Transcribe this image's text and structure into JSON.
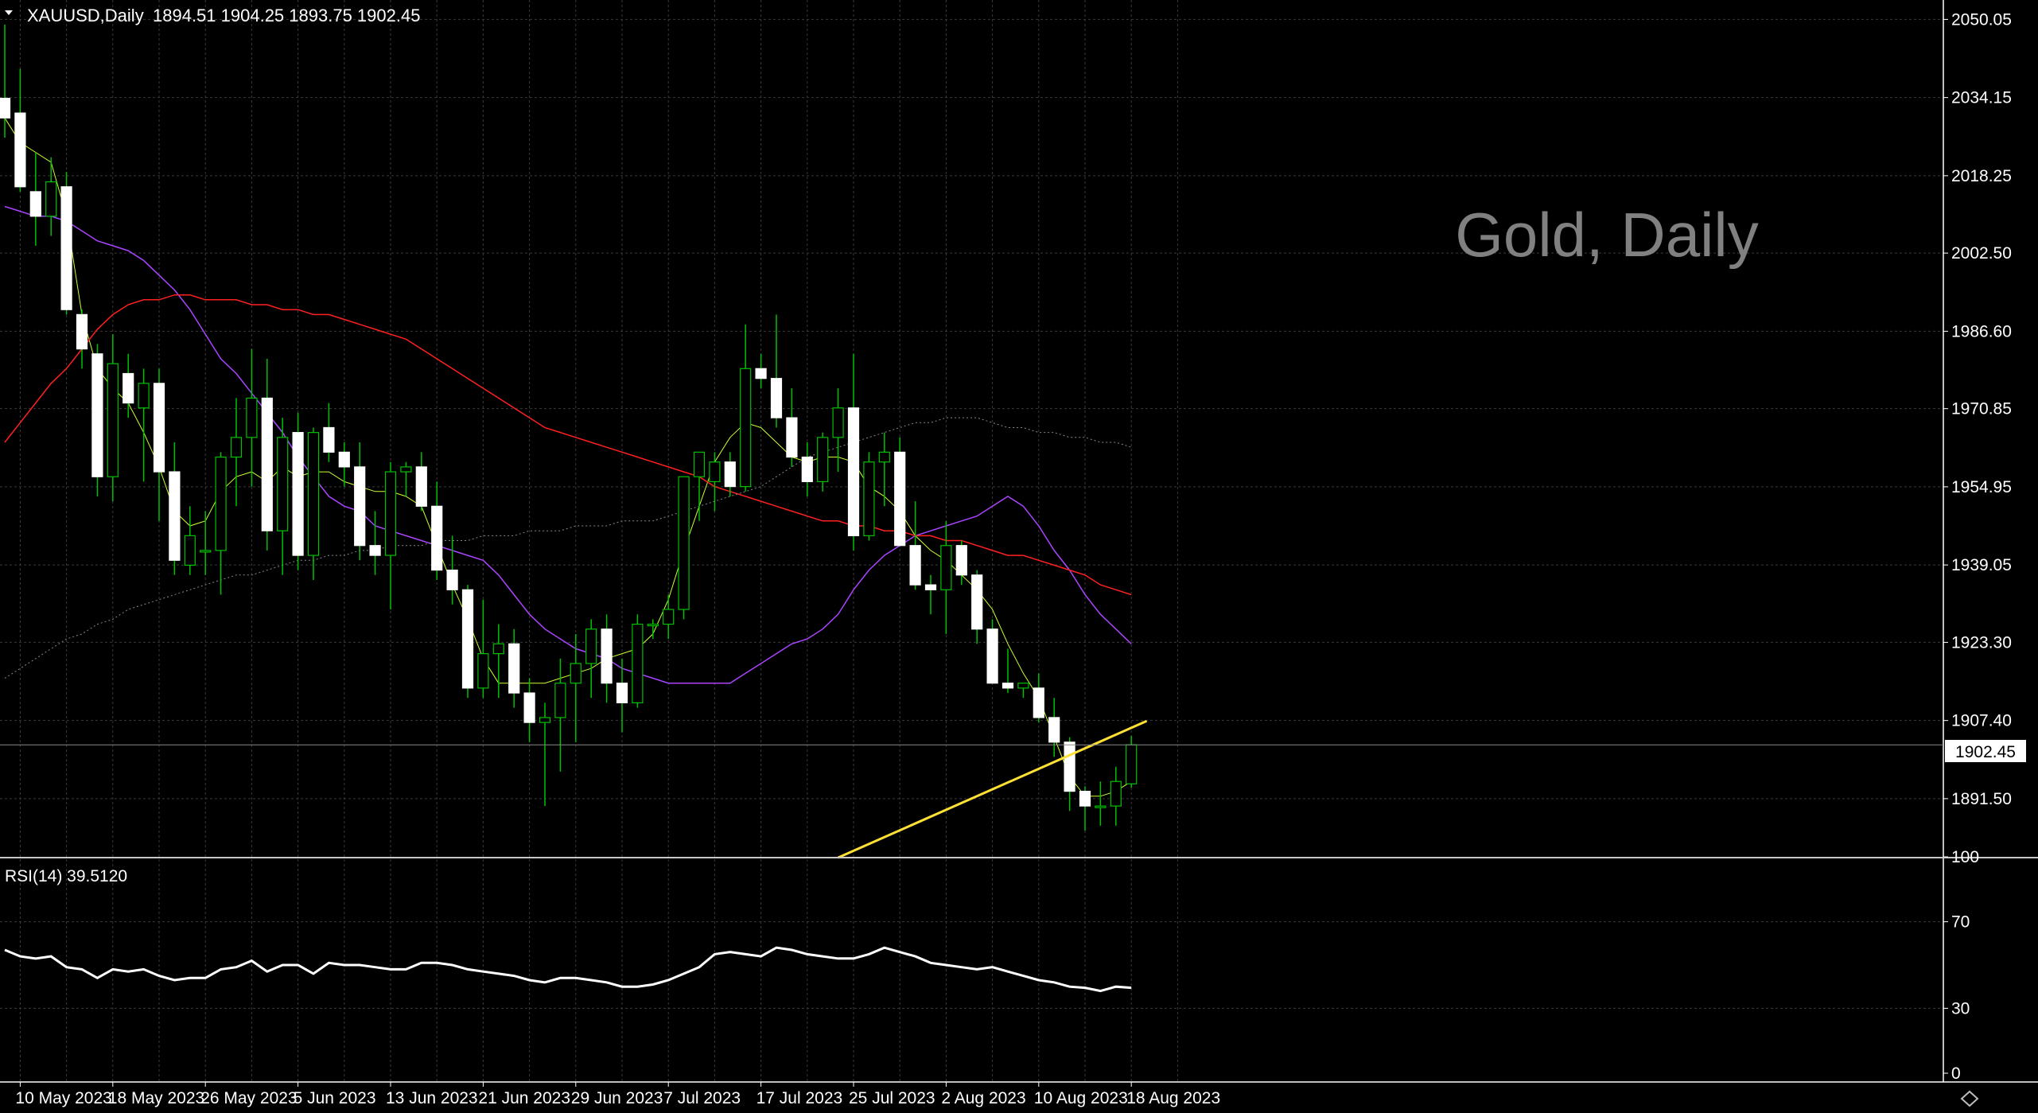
{
  "header": {
    "symbol": "XAUUSD,Daily",
    "ohlc": "1894.51 1904.25 1893.75 1902.45"
  },
  "watermark": "Gold, Daily",
  "current_price_label": "1902.45",
  "rsi": {
    "label": "RSI(14) 39.5120",
    "levels": [
      "100",
      "70",
      "30",
      "0"
    ]
  },
  "chart_data": {
    "type": "candlestick",
    "symbol": "XAUUSD",
    "timeframe": "Daily",
    "price_ticks": [
      "2050.05",
      "2034.15",
      "2018.25",
      "2002.50",
      "1986.60",
      "1970.85",
      "1954.95",
      "1939.05",
      "1923.30",
      "1907.40",
      "1891.50"
    ],
    "price_range": [
      1879.5,
      2054.0
    ],
    "last_price": 1902.45,
    "date_labels": [
      "10 May 2023",
      "18 May 2023",
      "26 May 2023",
      "5 Jun 2023",
      "13 Jun 2023",
      "21 Jun 2023",
      "29 Jun 2023",
      "7 Jul 2023",
      "17 Jul 2023",
      "25 Jul 2023",
      "2 Aug 2023",
      "10 Aug 2023",
      "18 Aug 2023"
    ],
    "date_label_index": [
      1,
      7,
      13,
      19,
      25,
      31,
      37,
      43,
      49,
      55,
      61,
      67,
      73
    ],
    "candles": [
      [
        2034,
        2049,
        2026,
        2030
      ],
      [
        2031,
        2040,
        2015,
        2016
      ],
      [
        2015,
        2023,
        2004,
        2010
      ],
      [
        2010,
        2022,
        2006,
        2017
      ],
      [
        2016,
        2019,
        1990,
        1991
      ],
      [
        1990,
        1991,
        1979,
        1983
      ],
      [
        1982,
        1984,
        1953,
        1957
      ],
      [
        1957,
        1986,
        1952,
        1980
      ],
      [
        1978,
        1982,
        1969,
        1972
      ],
      [
        1971,
        1979,
        1956,
        1976
      ],
      [
        1976,
        1979,
        1948,
        1958
      ],
      [
        1958,
        1964,
        1937,
        1940
      ],
      [
        1939,
        1951,
        1937,
        1945
      ],
      [
        1942,
        1950,
        1937,
        1942
      ],
      [
        1942,
        1962,
        1933,
        1961
      ],
      [
        1961,
        1973,
        1951,
        1965
      ],
      [
        1965,
        1983,
        1955,
        1973
      ],
      [
        1973,
        1981,
        1942,
        1946
      ],
      [
        1946,
        1969,
        1937,
        1965
      ],
      [
        1966,
        1970,
        1938,
        1941
      ],
      [
        1941,
        1967,
        1936,
        1966
      ],
      [
        1967,
        1972,
        1960,
        1962
      ],
      [
        1962,
        1964,
        1955,
        1959
      ],
      [
        1959,
        1964,
        1940,
        1943
      ],
      [
        1943,
        1950,
        1937,
        1941
      ],
      [
        1941,
        1960,
        1930,
        1958
      ],
      [
        1958,
        1960,
        1953,
        1959
      ],
      [
        1959,
        1962,
        1950,
        1951
      ],
      [
        1951,
        1956,
        1936,
        1938
      ],
      [
        1938,
        1945,
        1931,
        1934
      ],
      [
        1934,
        1935,
        1912,
        1914
      ],
      [
        1914,
        1932,
        1912,
        1921
      ],
      [
        1921,
        1927,
        1912,
        1923
      ],
      [
        1923,
        1926,
        1910,
        1913
      ],
      [
        1913,
        1916,
        1903,
        1907
      ],
      [
        1907,
        1911,
        1890,
        1908
      ],
      [
        1908,
        1920,
        1897,
        1915
      ],
      [
        1915,
        1925,
        1903,
        1919
      ],
      [
        1919,
        1928,
        1912,
        1926
      ],
      [
        1926,
        1929,
        1911,
        1915
      ],
      [
        1915,
        1920,
        1905,
        1911
      ],
      [
        1911,
        1929,
        1910,
        1927
      ],
      [
        1927,
        1928,
        1924,
        1927
      ],
      [
        1927,
        1933,
        1924,
        1930
      ],
      [
        1930,
        1957,
        1928,
        1957
      ],
      [
        1957,
        1962,
        1948,
        1962
      ],
      [
        1956,
        1962,
        1950,
        1960
      ],
      [
        1960,
        1962,
        1953,
        1955
      ],
      [
        1955,
        1988,
        1954,
        1979
      ],
      [
        1979,
        1982,
        1975,
        1977
      ],
      [
        1977,
        1990,
        1967,
        1969
      ],
      [
        1969,
        1975,
        1959,
        1961
      ],
      [
        1961,
        1964,
        1953,
        1956
      ],
      [
        1956,
        1966,
        1954,
        1965
      ],
      [
        1965,
        1975,
        1958,
        1971
      ],
      [
        1971,
        1982,
        1942,
        1945
      ],
      [
        1945,
        1962,
        1944,
        1960
      ],
      [
        1960,
        1966,
        1951,
        1962
      ],
      [
        1962,
        1965,
        1943,
        1943
      ],
      [
        1943,
        1952,
        1934,
        1935
      ],
      [
        1935,
        1937,
        1929,
        1934
      ],
      [
        1934,
        1948,
        1925,
        1943
      ],
      [
        1943,
        1944,
        1935,
        1937
      ],
      [
        1937,
        1938,
        1923,
        1926
      ],
      [
        1926,
        1928,
        1915,
        1915
      ],
      [
        1915,
        1922,
        1913,
        1914
      ],
      [
        1914,
        1915,
        1912,
        1915
      ],
      [
        1914,
        1917,
        1907,
        1908
      ],
      [
        1908,
        1912,
        1900,
        1903
      ],
      [
        1903,
        1904,
        1889,
        1893
      ],
      [
        1893,
        1894,
        1885,
        1890
      ],
      [
        1890,
        1895,
        1886,
        1890
      ],
      [
        1890,
        1898,
        1886,
        1895
      ],
      [
        1894.51,
        1904.25,
        1893.75,
        1902.45
      ]
    ],
    "overlays": [
      {
        "color": "#ccff33",
        "width": 1,
        "values": [
          2030,
          2025,
          2023,
          2021,
          2010,
          1990,
          1979,
          1975,
          1972,
          1966,
          1959,
          1950,
          1947,
          1948,
          1954,
          1957,
          1958,
          1956,
          1959,
          1957,
          1958,
          1958,
          1956,
          1955,
          1954,
          1954,
          1953,
          1951,
          1943,
          1935,
          1928,
          1920,
          1915,
          1915,
          1915,
          1915,
          1916,
          1917,
          1918,
          1920,
          1921,
          1922,
          1925,
          1932,
          1942,
          1951,
          1960,
          1965,
          1968,
          1967,
          1964,
          1961,
          1960,
          1961,
          1961,
          1960,
          1955,
          1953,
          1950,
          1945,
          1942,
          1940,
          1937,
          1934,
          1930,
          1923,
          1917,
          1912,
          1904,
          1896,
          1892,
          1892,
          1893,
          1895
        ]
      },
      {
        "color": "#aa44ff",
        "width": 1.5,
        "values": [
          2012,
          2011,
          2010,
          2010,
          2009,
          2007,
          2005,
          2004,
          2003,
          2001,
          1998,
          1995,
          1991,
          1986,
          1981,
          1978,
          1974,
          1970,
          1966,
          1961,
          1957,
          1953,
          1951,
          1950,
          1947,
          1946,
          1945,
          1944,
          1943,
          1942,
          1941,
          1940,
          1937,
          1933,
          1929,
          1926,
          1924,
          1922,
          1921,
          1920,
          1918,
          1917,
          1916,
          1915,
          1915,
          1915,
          1915,
          1915,
          1917,
          1919,
          1921,
          1923,
          1924,
          1926,
          1929,
          1934,
          1938,
          1941,
          1943,
          1945,
          1946,
          1947,
          1948,
          1949,
          1951,
          1953,
          1951,
          1947,
          1942,
          1938,
          1933,
          1929,
          1926,
          1923
        ]
      },
      {
        "color": "#ff2020",
        "width": 1.5,
        "values": [
          1964,
          1968,
          1972,
          1976,
          1979,
          1983,
          1987,
          1990,
          1992,
          1993,
          1993,
          1994,
          1994,
          1993,
          1993,
          1993,
          1992,
          1992,
          1991,
          1991,
          1990,
          1990,
          1989,
          1988,
          1987,
          1986,
          1985,
          1983,
          1981,
          1979,
          1977,
          1975,
          1973,
          1971,
          1969,
          1967,
          1966,
          1965,
          1964,
          1963,
          1962,
          1961,
          1960,
          1959,
          1958,
          1957,
          1955,
          1954,
          1953,
          1952,
          1951,
          1950,
          1949,
          1948,
          1948,
          1947,
          1947,
          1946,
          1946,
          1945,
          1945,
          1944,
          1944,
          1943,
          1942,
          1941,
          1941,
          1940,
          1939,
          1938,
          1937,
          1935,
          1934,
          1933
        ]
      },
      {
        "color": "#888888",
        "width": 1,
        "dash": "2,3",
        "values": [
          1916,
          1918,
          1920,
          1922,
          1924,
          1925,
          1927,
          1928,
          1930,
          1931,
          1932,
          1933,
          1934,
          1935,
          1936,
          1937,
          1937,
          1938,
          1939,
          1940,
          1940,
          1941,
          1941,
          1942,
          1942,
          1943,
          1943,
          1943,
          1944,
          1944,
          1944,
          1945,
          1945,
          1945,
          1946,
          1946,
          1946,
          1947,
          1947,
          1947,
          1948,
          1948,
          1948,
          1949,
          1950,
          1951,
          1952,
          1953,
          1954,
          1955,
          1957,
          1959,
          1961,
          1962,
          1963,
          1964,
          1965,
          1966,
          1967,
          1968,
          1968,
          1969,
          1969,
          1969,
          1968,
          1967,
          1967,
          1966,
          1966,
          1965,
          1965,
          1964,
          1964,
          1963
        ]
      }
    ],
    "trendline": {
      "color": "#ffe135",
      "from": [
        54.0,
        1879.5
      ],
      "to": [
        74.0,
        1907.3
      ]
    },
    "rsi_values": [
      57,
      54,
      53,
      54,
      49,
      48,
      44,
      48,
      47,
      48,
      45,
      43,
      44,
      44,
      48,
      49,
      52,
      47,
      50,
      50,
      46,
      51,
      50,
      50,
      49,
      48,
      48,
      51,
      51,
      50,
      48,
      47,
      46,
      45,
      43,
      42,
      44,
      44,
      43,
      42,
      40,
      40,
      41,
      43,
      46,
      49,
      55,
      56,
      55,
      54,
      58,
      57,
      55,
      54,
      53,
      53,
      55,
      58,
      56,
      54,
      51,
      50,
      49,
      48,
      49,
      47,
      45,
      43,
      42,
      40,
      39.5,
      38,
      40,
      39.5
    ]
  }
}
